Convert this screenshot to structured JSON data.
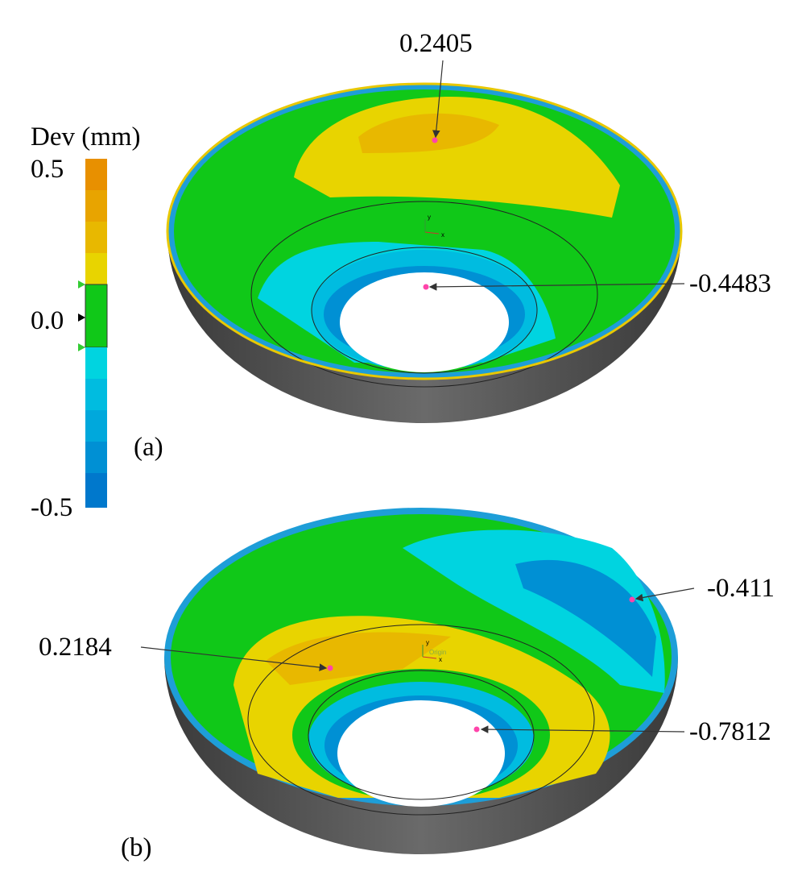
{
  "legend": {
    "title": "Dev (mm)",
    "ticks": [
      "0.5",
      "0.0",
      "-0.5"
    ]
  },
  "panels": [
    {
      "label": "(a)",
      "axis_labels": [
        "y",
        "x"
      ],
      "annotations": [
        "0.2405",
        "-0.4483"
      ]
    },
    {
      "label": "(b)",
      "axis_labels": [
        "y",
        "x",
        "Origin"
      ],
      "annotations": [
        "-0.411",
        "0.2184",
        "-0.7812"
      ]
    }
  ]
}
